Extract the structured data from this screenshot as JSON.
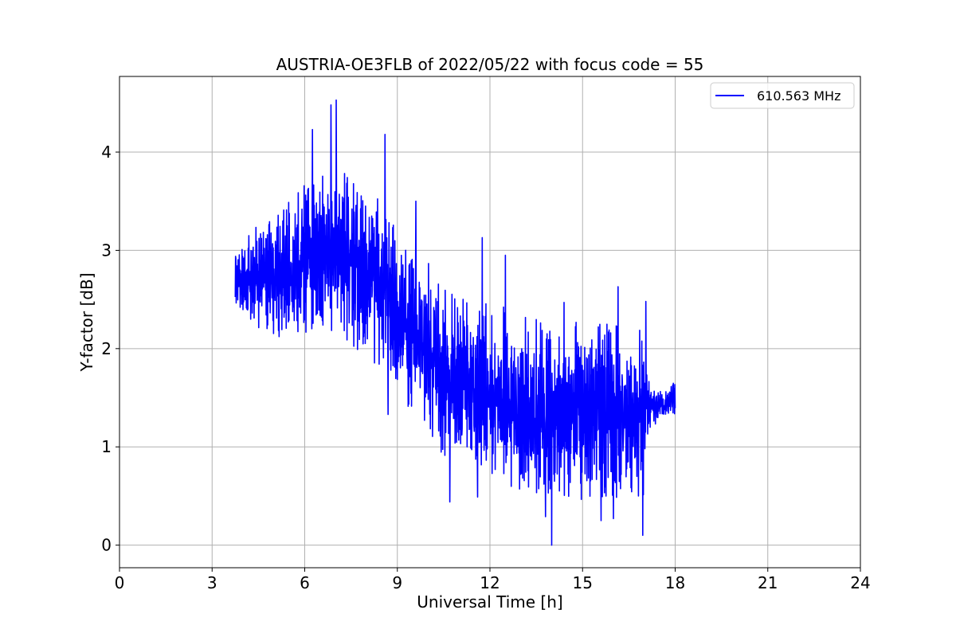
{
  "colors": {
    "series": "#0000ff",
    "grid": "#b0b0b0",
    "axes": "#000000",
    "legend_border": "#cccccc"
  },
  "chart_data": {
    "type": "line",
    "title": "AUSTRIA-OE3FLB of 2022/05/22 with focus code = 55",
    "xlabel": "Universal Time [h]",
    "ylabel": "Y-factor [dB]",
    "xlim": [
      0,
      24
    ],
    "ylim": [
      -0.23,
      4.77
    ],
    "xticks": [
      0,
      3,
      6,
      9,
      12,
      15,
      18,
      21,
      24
    ],
    "xtick_labels": [
      "0",
      "3",
      "6",
      "9",
      "12",
      "15",
      "18",
      "21",
      "24"
    ],
    "yticks": [
      0,
      1,
      2,
      3,
      4
    ],
    "ytick_labels": [
      "0",
      "1",
      "2",
      "3",
      "4"
    ],
    "grid": true,
    "legend_position": "top-right",
    "series": [
      {
        "name": "610.563 MHz",
        "color": "#0000ff",
        "x_range": [
          3.75,
          18.0
        ],
        "sample_step_h": 0.01,
        "trend": {
          "x": [
            3.75,
            4.5,
            5.5,
            6.5,
            7.5,
            8.5,
            9.5,
            10.5,
            11.5,
            12.5,
            13.5,
            14.5,
            15.5,
            16.5,
            17.2,
            17.6,
            18.0
          ],
          "y": [
            2.7,
            2.75,
            2.8,
            3.0,
            2.95,
            2.6,
            2.15,
            1.8,
            1.65,
            1.5,
            1.35,
            1.3,
            1.35,
            1.3,
            1.4,
            1.4,
            1.5
          ]
        },
        "amplitude": {
          "x": [
            3.75,
            5.0,
            7.0,
            9.0,
            11.0,
            13.0,
            15.0,
            17.0,
            17.2,
            18.0
          ],
          "y": [
            0.3,
            0.6,
            0.8,
            0.75,
            0.8,
            0.85,
            0.85,
            0.8,
            0.15,
            0.15
          ]
        },
        "peaks": [
          {
            "x": 6.25,
            "y": 4.23
          },
          {
            "x": 6.85,
            "y": 4.48
          },
          {
            "x": 7.02,
            "y": 4.53
          },
          {
            "x": 8.6,
            "y": 4.18
          },
          {
            "x": 9.6,
            "y": 3.5
          },
          {
            "x": 11.75,
            "y": 3.13
          },
          {
            "x": 12.5,
            "y": 2.95
          },
          {
            "x": 14.4,
            "y": 2.47
          },
          {
            "x": 16.15,
            "y": 2.63
          },
          {
            "x": 17.05,
            "y": 2.48
          }
        ],
        "troughs": [
          {
            "x": 8.7,
            "y": 1.33
          },
          {
            "x": 10.7,
            "y": 0.44
          },
          {
            "x": 11.6,
            "y": 0.49
          },
          {
            "x": 13.8,
            "y": 0.29
          },
          {
            "x": 14.0,
            "y": 0.0
          },
          {
            "x": 15.6,
            "y": 0.25
          },
          {
            "x": 16.0,
            "y": 0.27
          },
          {
            "x": 16.95,
            "y": 0.1
          }
        ]
      }
    ]
  }
}
